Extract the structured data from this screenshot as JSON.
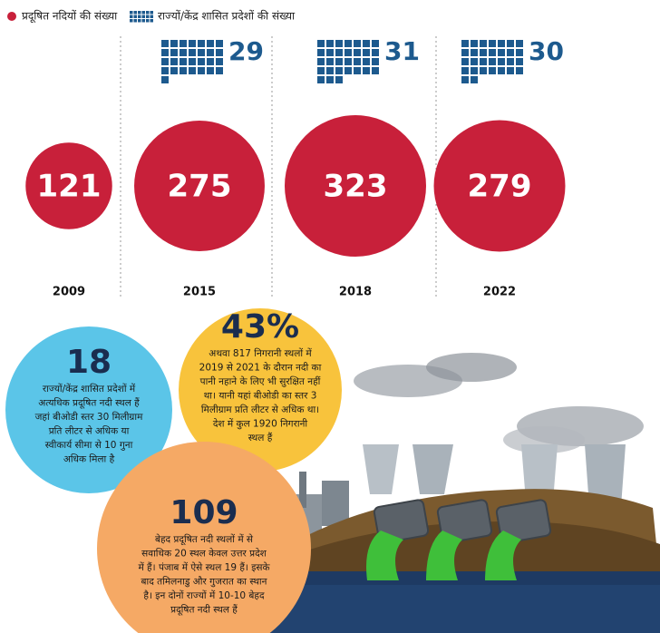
{
  "chart_data": {
    "type": "bubble",
    "categories": [
      "2009",
      "2015",
      "2018",
      "2022"
    ],
    "series": [
      {
        "name": "प्रदूषित नदियों की संख्या",
        "color": "#c8203a",
        "values": [
          121,
          275,
          323,
          279
        ]
      },
      {
        "name": "राज्यों/केंद्र शासित प्रदेशों की संख्या",
        "color": "#1d5a8e",
        "values": [
          null,
          29,
          31,
          30
        ]
      }
    ],
    "annotations": [
      {
        "title": "18",
        "color": "#5bc5e8",
        "lines": [
          "राज्यों/केंद्र शासित प्रदेशों में",
          "अत्यधिक प्रदूषित नदी स्थल हैं",
          "जहां बीओडी स्तर 30 मिलीग्राम",
          "प्रति लीटर से अधिक या",
          "स्वीकार्य सीमा से 10 गुना",
          "अधिक मिला है"
        ]
      },
      {
        "title": "43%",
        "color": "#f8c33c",
        "lines": [
          "अथवा 817 निगरानी स्थलों में",
          "2019 से 2021 के दौरान नदी का",
          "पानी नहाने के लिए भी सुरक्षित नहीं",
          "था। यानी यहां बीओडी का स्तर 3",
          "मिलीग्राम प्रति लीटर से अधिक था।",
          "देश में कुल 1920 निगरानी",
          "स्थल हैं"
        ]
      },
      {
        "title": "109",
        "color": "#f5a965",
        "lines": [
          "बेहद प्रदूषित नदी स्थलों में से",
          "सवाधिक 20 स्थल केवल उत्तर प्रदेश",
          "में हैं। पंजाब में ऐसे स्थल 19 हैं। इसके",
          "बाद तमिलनाडु और गुजरात का स्थान",
          "है। इन दोनों राज्यों में 10-10 बेहद",
          "प्रदूषित नदी स्थल हैं"
        ]
      }
    ]
  }
}
